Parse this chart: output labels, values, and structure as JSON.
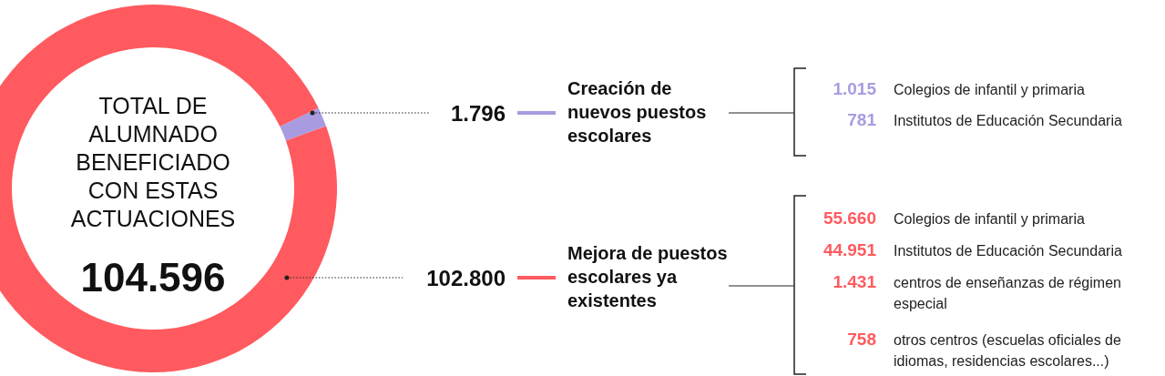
{
  "chart_data": {
    "type": "donut",
    "categories": [
      "Creación de nuevos puestos escolares",
      "Mejora de puestos escolares ya existentes"
    ],
    "values": [
      1796,
      102800
    ],
    "colors": [
      "#a99be0",
      "#ff5a5f"
    ],
    "value_labels": [
      "1.796",
      "102.800"
    ],
    "annotations": [
      "TOTAL DE ALUMNADO BENEFICIADO CON ESTAS ACTUACIONES",
      "104.596",
      "1.015",
      "Colegios de infantil y primaria",
      "781",
      "Institutos de Educación Secundaria",
      "55.660",
      "Colegios de infantil y primaria",
      "44.951",
      "Institutos de Educación Secundaria",
      "1.431",
      "centros de enseñanzas de régimen especial",
      "758",
      "otros centros (escuelas oficiales de idiomas, residencias escolares...)"
    ],
    "legend": "right"
  }
}
